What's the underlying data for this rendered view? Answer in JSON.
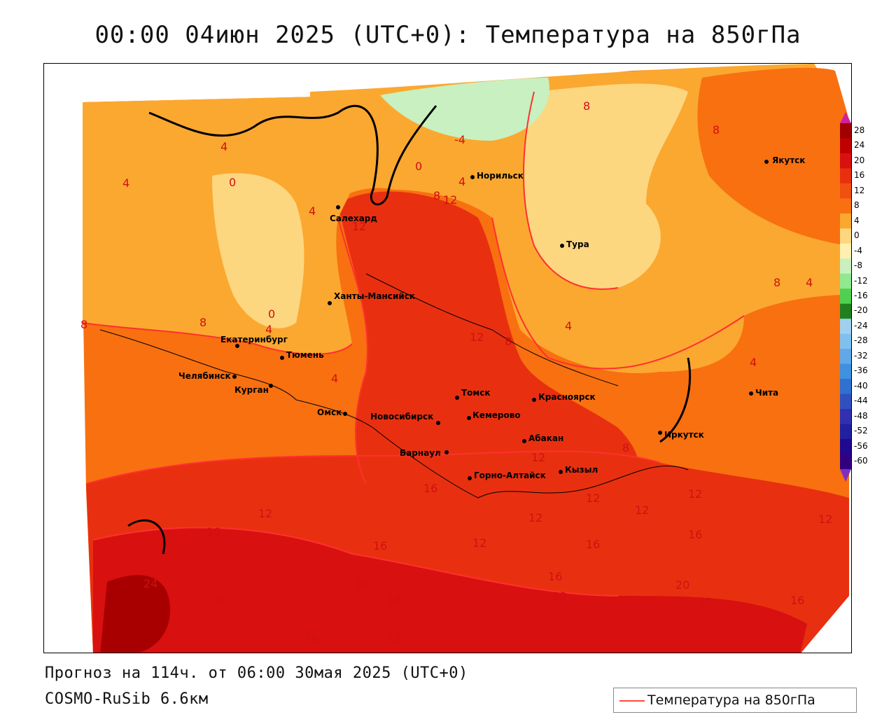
{
  "title": "00:00 04июн 2025 (UTC+0): Температура на 850гПа",
  "footer": {
    "forecast": "Прогноз на 114ч. от 06:00 30мая 2025 (UTC+0)",
    "model": "COSMO-RuSib 6.6км"
  },
  "legend": {
    "label": "Температура на 850гПа",
    "line_color": "#ff4a3a"
  },
  "colorbar": {
    "ticks": [
      "28",
      "24",
      "20",
      "16",
      "12",
      "8",
      "4",
      "0",
      "-4",
      "-8",
      "-12",
      "-16",
      "-20",
      "-24",
      "-28",
      "-32",
      "-36",
      "-40",
      "-44",
      "-48",
      "-52",
      "-56",
      "-60"
    ],
    "colors": [
      "#a00000",
      "#c00000",
      "#d81010",
      "#e83010",
      "#f05010",
      "#f87010",
      "#fba830",
      "#fdd680",
      "#fff0b0",
      "#c8f0c0",
      "#90e890",
      "#50d050",
      "#208020",
      "#a0d0f0",
      "#80c0f0",
      "#60a8e8",
      "#4090e0",
      "#3070d0",
      "#3050c0",
      "#3030b0",
      "#2020a0",
      "#200890",
      "#300080"
    ],
    "top_arrow_color": "#d020a0",
    "bottom_arrow_color": "#8030c0"
  },
  "cities": [
    {
      "name": "Якутск"
    },
    {
      "name": "Норильск"
    },
    {
      "name": "Салехард"
    },
    {
      "name": "Тура"
    },
    {
      "name": "Ханты-Мансийск"
    },
    {
      "name": "Екатеринбург"
    },
    {
      "name": "Тюмень"
    },
    {
      "name": "Челябинск"
    },
    {
      "name": "Курган"
    },
    {
      "name": "Омск"
    },
    {
      "name": "Новосибирск"
    },
    {
      "name": "Томск"
    },
    {
      "name": "Кемерово"
    },
    {
      "name": "Красноярск"
    },
    {
      "name": "Абакан"
    },
    {
      "name": "Барнаул"
    },
    {
      "name": "Горно-Алтайск"
    },
    {
      "name": "Кызыл"
    },
    {
      "name": "Иркутск"
    },
    {
      "name": "Чита"
    }
  ],
  "isotherm_labels": [
    "8",
    "8",
    "4",
    "4",
    "0",
    "4",
    "8",
    "8",
    "0",
    "4",
    "4",
    "-4",
    "0",
    "4",
    "8",
    "12",
    "12",
    "12",
    "4",
    "8",
    "8",
    "4",
    "4",
    "8",
    "12",
    "12",
    "12",
    "16",
    "16",
    "12",
    "16",
    "12",
    "16",
    "12",
    "12",
    "24",
    "20",
    "16",
    "20",
    "16",
    "20",
    "16",
    "20",
    "20",
    "16",
    "12",
    "16",
    "12"
  ]
}
